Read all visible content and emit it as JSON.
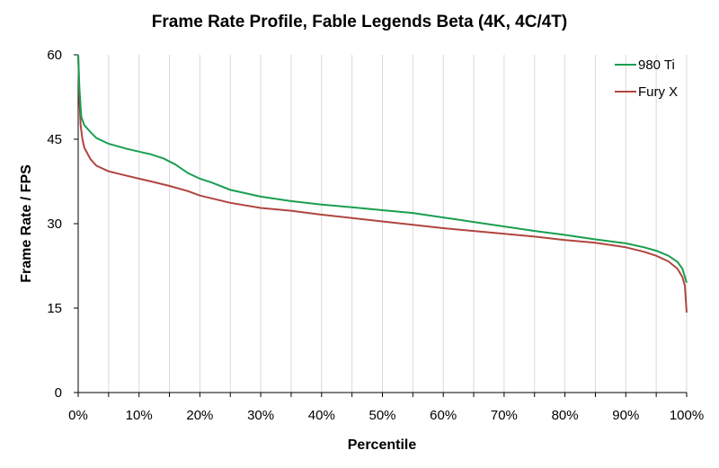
{
  "chart_data": {
    "type": "line",
    "title": "Frame Rate Profile, Fable Legends Beta (4K, 4C/4T)",
    "xlabel": "Percentile",
    "ylabel": "Frame Rate / FPS",
    "xlim": [
      0,
      100
    ],
    "ylim": [
      0,
      60
    ],
    "x_ticks": [
      0,
      10,
      20,
      30,
      40,
      50,
      60,
      70,
      80,
      90,
      100
    ],
    "x_tick_labels": [
      "0%",
      "10%",
      "20%",
      "30%",
      "40%",
      "50%",
      "60%",
      "70%",
      "80%",
      "90%",
      "100%"
    ],
    "y_ticks": [
      0,
      15,
      30,
      45,
      60
    ],
    "y_tick_labels": [
      "0",
      "15",
      "30",
      "45",
      "60"
    ],
    "x_grid": true,
    "x_minor_step": 5,
    "y_grid": false,
    "legend_position": "top-right",
    "series": [
      {
        "name": "980 Ti",
        "color": "#1a9e50",
        "points": [
          [
            0,
            60
          ],
          [
            0.2,
            54
          ],
          [
            0.5,
            49
          ],
          [
            1,
            47.5
          ],
          [
            2,
            46.3
          ],
          [
            3,
            45.2
          ],
          [
            5,
            44.2
          ],
          [
            8,
            43.3
          ],
          [
            10,
            42.8
          ],
          [
            12,
            42.3
          ],
          [
            14,
            41.6
          ],
          [
            16,
            40.5
          ],
          [
            18,
            39.0
          ],
          [
            20,
            38.0
          ],
          [
            22,
            37.3
          ],
          [
            25,
            36.0
          ],
          [
            30,
            34.8
          ],
          [
            35,
            34.0
          ],
          [
            40,
            33.4
          ],
          [
            45,
            32.9
          ],
          [
            50,
            32.4
          ],
          [
            55,
            31.9
          ],
          [
            60,
            31.1
          ],
          [
            65,
            30.3
          ],
          [
            70,
            29.5
          ],
          [
            75,
            28.7
          ],
          [
            80,
            28.0
          ],
          [
            85,
            27.2
          ],
          [
            90,
            26.5
          ],
          [
            93,
            25.8
          ],
          [
            95,
            25.2
          ],
          [
            97,
            24.3
          ],
          [
            98.5,
            23.2
          ],
          [
            99.3,
            22.0
          ],
          [
            100,
            19.5
          ]
        ]
      },
      {
        "name": "Fury X",
        "color": "#b0453f",
        "points": [
          [
            0,
            60
          ],
          [
            0.2,
            52
          ],
          [
            0.4,
            47.5
          ],
          [
            0.7,
            45
          ],
          [
            1,
            43.5
          ],
          [
            2,
            41.5
          ],
          [
            3,
            40.3
          ],
          [
            5,
            39.3
          ],
          [
            8,
            38.5
          ],
          [
            10,
            38.0
          ],
          [
            12,
            37.5
          ],
          [
            15,
            36.7
          ],
          [
            18,
            35.8
          ],
          [
            20,
            35.0
          ],
          [
            25,
            33.7
          ],
          [
            30,
            32.8
          ],
          [
            35,
            32.3
          ],
          [
            40,
            31.6
          ],
          [
            45,
            31.0
          ],
          [
            50,
            30.4
          ],
          [
            55,
            29.8
          ],
          [
            60,
            29.2
          ],
          [
            65,
            28.7
          ],
          [
            70,
            28.2
          ],
          [
            75,
            27.7
          ],
          [
            80,
            27.1
          ],
          [
            85,
            26.6
          ],
          [
            90,
            25.8
          ],
          [
            93,
            25.0
          ],
          [
            95,
            24.3
          ],
          [
            97,
            23.3
          ],
          [
            98.5,
            22.0
          ],
          [
            99.3,
            20.5
          ],
          [
            99.7,
            19.0
          ],
          [
            100,
            14.2
          ]
        ]
      }
    ]
  }
}
